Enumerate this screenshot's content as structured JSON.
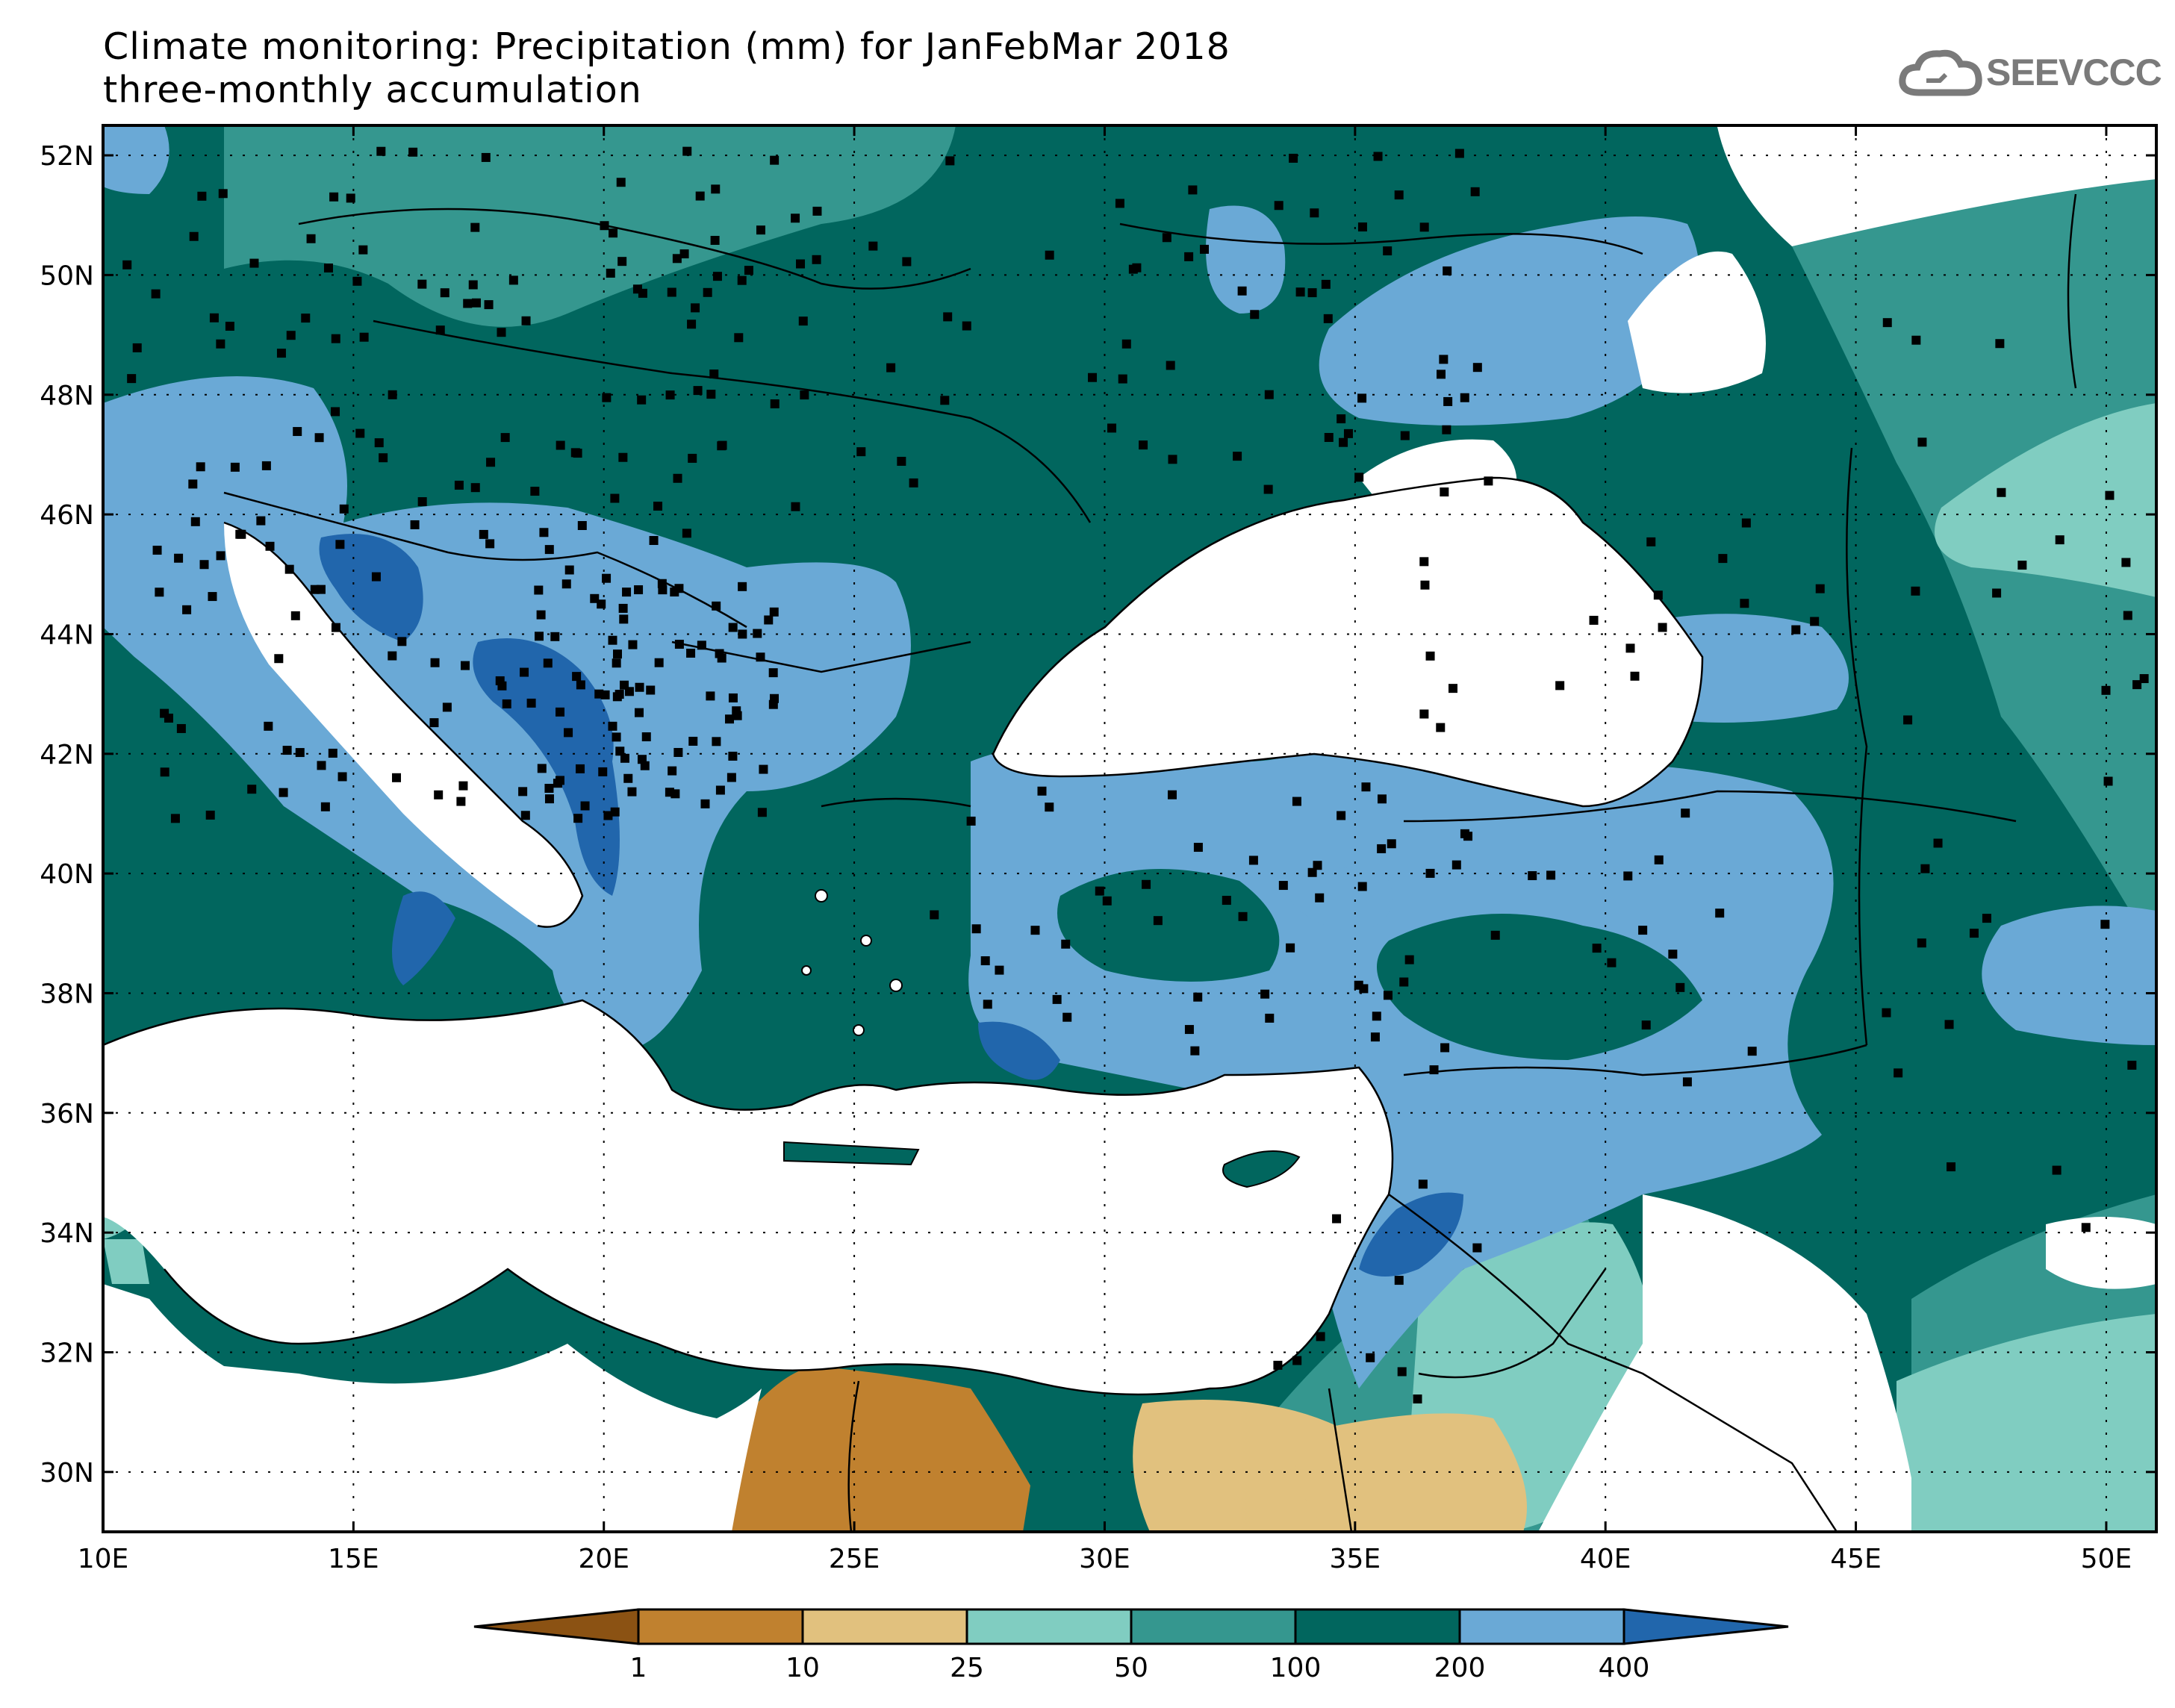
{
  "title": {
    "line1": "Climate monitoring: Precipitation (mm) for JanFebMar 2018",
    "line2": "three-monthly accumulation"
  },
  "logo_text": "SEEVCCC",
  "axes": {
    "lat_labels": [
      "52N",
      "50N",
      "48N",
      "46N",
      "44N",
      "42N",
      "40N",
      "38N",
      "36N",
      "34N",
      "32N",
      "30N"
    ],
    "lon_labels": [
      "10E",
      "15E",
      "20E",
      "25E",
      "30E",
      "35E",
      "40E",
      "45E",
      "50E"
    ]
  },
  "colorbar": {
    "boundaries": [
      "1",
      "10",
      "25",
      "50",
      "100",
      "200",
      "400"
    ],
    "colors": [
      "#8b5213",
      "#c0812f",
      "#e1c17e",
      "#80cdc1",
      "#35978f",
      "#01665e",
      "#6aa9d6",
      "#2166ac"
    ]
  },
  "colors": {
    "sea": "#ffffff",
    "station": "#000000"
  }
}
